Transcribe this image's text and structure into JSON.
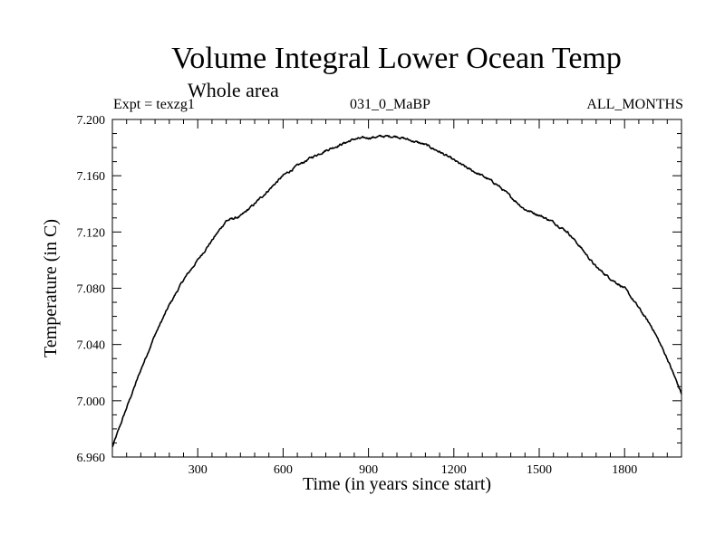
{
  "header": {
    "title": "Volume Integral Lower Ocean Temp",
    "subtitle": "Whole area",
    "left_label": "Expt = texzg1",
    "center_label": "031_0_MaBP",
    "right_label": "ALL_MONTHS"
  },
  "chart_data": {
    "type": "line",
    "title": "Volume Integral Lower Ocean Temp",
    "subtitle": "Whole area",
    "xlabel": "Time (in years since start)",
    "ylabel": "Temperature (in C)",
    "xlim": [
      0,
      2000
    ],
    "ylim": [
      6.96,
      7.2
    ],
    "xticks": [
      300,
      600,
      900,
      1200,
      1500,
      1800
    ],
    "xtick_labels": [
      "300",
      "600",
      "900",
      "1200",
      "1500",
      "1800"
    ],
    "yticks": [
      6.96,
      7.0,
      7.04,
      7.08,
      7.12,
      7.16,
      7.2
    ],
    "ytick_labels": [
      "6.960",
      "7.000",
      "7.040",
      "7.080",
      "7.120",
      "7.160",
      "7.200"
    ],
    "grid": false,
    "line_color": "#000000",
    "series": [
      {
        "name": "texzg1",
        "x": [
          0,
          50,
          100,
          150,
          200,
          250,
          300,
          350,
          400,
          450,
          500,
          550,
          600,
          650,
          700,
          750,
          800,
          850,
          900,
          950,
          1000,
          1050,
          1100,
          1150,
          1200,
          1250,
          1300,
          1350,
          1400,
          1450,
          1500,
          1550,
          1600,
          1650,
          1700,
          1750,
          1800,
          1850,
          1900,
          1950,
          2000
        ],
        "values": [
          6.967,
          6.995,
          7.022,
          7.047,
          7.068,
          7.086,
          7.1,
          7.114,
          7.128,
          7.131,
          7.14,
          7.15,
          7.16,
          7.167,
          7.173,
          7.178,
          7.182,
          7.186,
          7.187,
          7.188,
          7.188,
          7.185,
          7.182,
          7.177,
          7.171,
          7.165,
          7.16,
          7.154,
          7.145,
          7.136,
          7.132,
          7.127,
          7.12,
          7.108,
          7.095,
          7.087,
          7.08,
          7.066,
          7.051,
          7.03,
          7.005
        ]
      }
    ]
  }
}
